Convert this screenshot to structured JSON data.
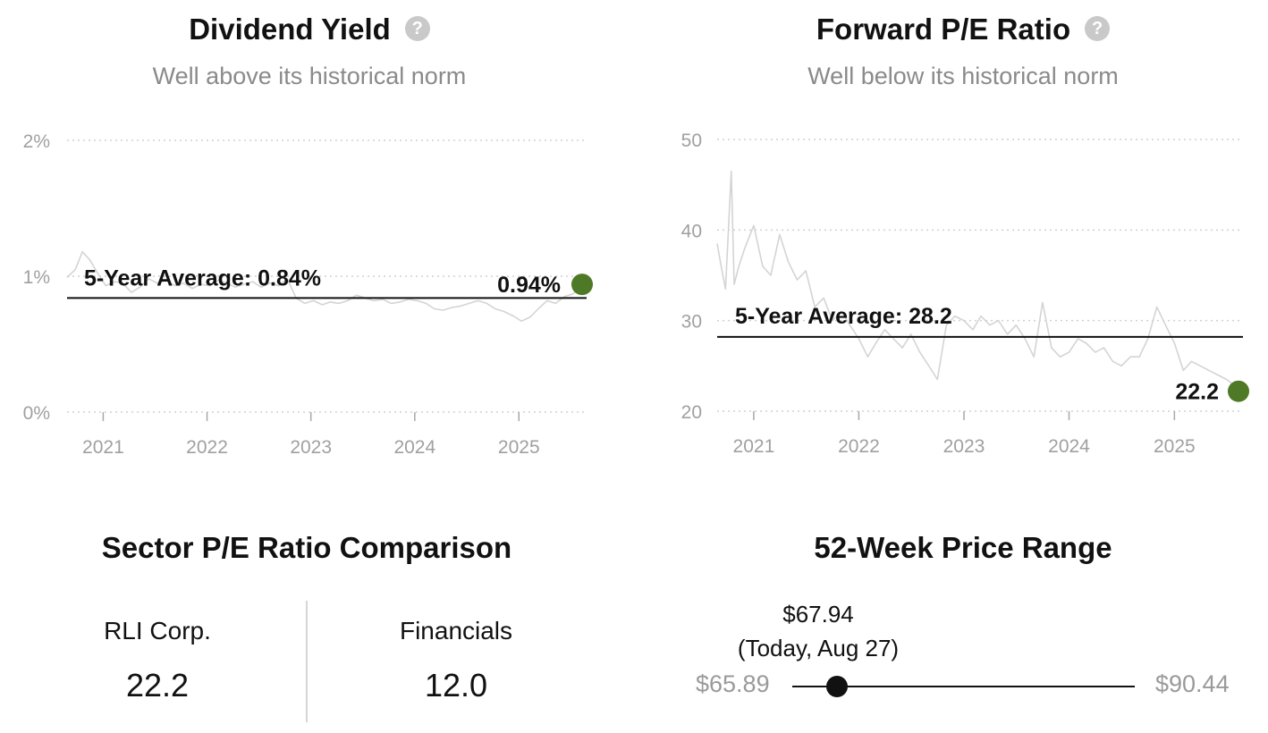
{
  "dividend": {
    "title": "Dividend Yield",
    "subtitle": "Well above its historical norm"
  },
  "pe": {
    "title": "Forward P/E Ratio",
    "subtitle": "Well below its historical norm"
  },
  "chart_data": [
    {
      "type": "line",
      "title": "Dividend Yield",
      "subtitle": "Well above its historical norm",
      "x_range": [
        "2020-08-27",
        "2025-08-27"
      ],
      "ylim": [
        0,
        2
      ],
      "y_ticks": [
        0,
        1,
        2
      ],
      "y_tick_labels": [
        "0%",
        "1%",
        "2%"
      ],
      "x_ticks": [
        "2021",
        "2022",
        "2023",
        "2024",
        "2025"
      ],
      "grid": "horizontal dotted",
      "series": [
        {
          "color": "#d4d4d4",
          "x": [
            "2020-08-27",
            "2020-09-25",
            "2020-10-20",
            "2020-11-15",
            "2020-12-10",
            "2021-01-10",
            "2021-02-10",
            "2021-03-10",
            "2021-04-10",
            "2021-05-10",
            "2021-06-10",
            "2021-07-10",
            "2021-08-10",
            "2021-09-10",
            "2021-10-10",
            "2021-11-10",
            "2021-12-10",
            "2022-01-10",
            "2022-02-10",
            "2022-03-10",
            "2022-04-10",
            "2022-05-10",
            "2022-06-10",
            "2022-07-10",
            "2022-08-10",
            "2022-09-10",
            "2022-10-10",
            "2022-11-10",
            "2022-12-10",
            "2023-01-10",
            "2023-02-10",
            "2023-03-10",
            "2023-04-10",
            "2023-05-10",
            "2023-06-10",
            "2023-07-10",
            "2023-08-10",
            "2023-09-10",
            "2023-10-10",
            "2023-11-10",
            "2023-12-10",
            "2024-01-10",
            "2024-02-10",
            "2024-03-10",
            "2024-04-10",
            "2024-05-10",
            "2024-06-10",
            "2024-07-10",
            "2024-08-10",
            "2024-09-10",
            "2024-10-10",
            "2024-11-10",
            "2024-12-10",
            "2025-01-10",
            "2025-02-10",
            "2025-03-10",
            "2025-04-10",
            "2025-05-10",
            "2025-06-10",
            "2025-07-10",
            "2025-08-10",
            "2025-08-27"
          ],
          "values": [
            0.99,
            1.05,
            1.18,
            1.12,
            1.03,
            0.93,
            0.96,
            0.95,
            0.88,
            0.92,
            0.98,
            0.95,
            0.97,
            0.93,
            0.95,
            0.91,
            0.94,
            0.93,
            0.97,
            0.95,
            0.92,
            0.94,
            0.96,
            0.92,
            0.95,
            0.93,
            0.98,
            0.84,
            0.8,
            0.82,
            0.79,
            0.81,
            0.8,
            0.82,
            0.86,
            0.84,
            0.82,
            0.83,
            0.8,
            0.81,
            0.83,
            0.82,
            0.8,
            0.76,
            0.75,
            0.77,
            0.78,
            0.8,
            0.82,
            0.8,
            0.76,
            0.74,
            0.71,
            0.67,
            0.7,
            0.76,
            0.82,
            0.8,
            0.85,
            0.87,
            0.92,
            0.94
          ]
        }
      ],
      "average": 0.84,
      "average_label": "5-Year Average: 0.84%",
      "current_value": 0.94,
      "current_label": "0.94%",
      "current_marker_color": "#4e7a27"
    },
    {
      "type": "line",
      "title": "Forward P/E Ratio",
      "subtitle": "Well below its historical norm",
      "x_range": [
        "2020-08-27",
        "2025-08-27"
      ],
      "ylim": [
        20,
        50
      ],
      "y_ticks": [
        20,
        30,
        40,
        50
      ],
      "y_tick_labels": [
        "20",
        "30",
        "40",
        "50"
      ],
      "x_ticks": [
        "2021",
        "2022",
        "2023",
        "2024",
        "2025"
      ],
      "grid": "horizontal dotted",
      "series": [
        {
          "color": "#d4d4d4",
          "x": [
            "2020-08-27",
            "2020-09-10",
            "2020-09-25",
            "2020-10-05",
            "2020-10-15",
            "2020-10-25",
            "2020-11-10",
            "2020-12-01",
            "2021-01-01",
            "2021-02-01",
            "2021-03-01",
            "2021-04-01",
            "2021-05-01",
            "2021-06-01",
            "2021-07-01",
            "2021-08-01",
            "2021-09-01",
            "2021-10-01",
            "2021-11-01",
            "2021-12-01",
            "2022-01-01",
            "2022-02-01",
            "2022-03-01",
            "2022-04-01",
            "2022-05-01",
            "2022-06-01",
            "2022-07-01",
            "2022-08-01",
            "2022-09-01",
            "2022-10-01",
            "2022-11-01",
            "2022-12-01",
            "2023-01-01",
            "2023-02-01",
            "2023-03-01",
            "2023-04-01",
            "2023-05-01",
            "2023-06-01",
            "2023-07-01",
            "2023-08-01",
            "2023-09-01",
            "2023-10-01",
            "2023-11-01",
            "2023-12-01",
            "2024-01-01",
            "2024-02-01",
            "2024-03-01",
            "2024-04-01",
            "2024-05-01",
            "2024-06-01",
            "2024-07-01",
            "2024-08-01",
            "2024-09-01",
            "2024-10-01",
            "2024-11-01",
            "2024-12-01",
            "2025-01-01",
            "2025-02-01",
            "2025-03-01",
            "2025-04-01",
            "2025-05-01",
            "2025-06-01",
            "2025-07-01",
            "2025-08-01",
            "2025-08-27"
          ],
          "values": [
            38.5,
            36.0,
            33.5,
            40.0,
            46.5,
            34.0,
            36.0,
            38.0,
            40.5,
            36.0,
            35.0,
            39.5,
            36.5,
            34.5,
            35.5,
            31.5,
            32.5,
            30.0,
            31.0,
            29.5,
            28.0,
            26.0,
            27.5,
            29.0,
            28.0,
            27.0,
            28.5,
            26.5,
            25.0,
            23.5,
            29.5,
            30.5,
            30.0,
            29.0,
            30.5,
            29.5,
            30.0,
            28.5,
            29.5,
            28.0,
            26.0,
            32.0,
            27.0,
            26.0,
            26.5,
            28.0,
            27.5,
            26.5,
            27.0,
            25.5,
            25.0,
            26.0,
            26.0,
            28.0,
            31.5,
            29.5,
            27.5,
            24.5,
            25.5,
            25.0,
            24.5,
            24.0,
            23.5,
            22.8,
            22.2
          ]
        }
      ],
      "average": 28.2,
      "average_label": "5-Year Average: 28.2",
      "current_value": 22.2,
      "current_label": "22.2",
      "current_marker_color": "#4e7a27"
    }
  ],
  "sector": {
    "title": "Sector P/E Ratio Comparison",
    "left_label": "RLI Corp.",
    "left_value": "22.2",
    "right_label": "Financials",
    "right_value": "12.0"
  },
  "range": {
    "title": "52-Week Price Range",
    "low": 65.89,
    "high": 90.44,
    "current": 67.94,
    "low_label": "$65.89",
    "high_label": "$90.44",
    "current_label": "$67.94",
    "current_note": "(Today, Aug 27)"
  }
}
